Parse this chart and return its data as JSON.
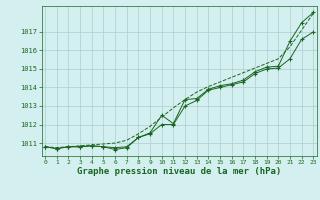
{
  "x": [
    0,
    1,
    2,
    3,
    4,
    5,
    6,
    7,
    8,
    9,
    10,
    11,
    12,
    13,
    14,
    15,
    16,
    17,
    18,
    19,
    20,
    21,
    22,
    23
  ],
  "line_smooth": [
    1010.8,
    1010.75,
    1010.8,
    1010.85,
    1010.9,
    1010.95,
    1011.0,
    1011.15,
    1011.5,
    1011.9,
    1012.4,
    1012.9,
    1013.35,
    1013.75,
    1014.05,
    1014.3,
    1014.55,
    1014.8,
    1015.05,
    1015.3,
    1015.55,
    1016.2,
    1017.1,
    1018.0
  ],
  "line_main": [
    1010.8,
    1010.7,
    1010.8,
    1010.8,
    1010.85,
    1010.8,
    1010.75,
    1010.8,
    1011.3,
    1011.55,
    1012.5,
    1012.05,
    1013.35,
    1013.4,
    1013.9,
    1014.1,
    1014.2,
    1014.4,
    1014.85,
    1015.1,
    1015.15,
    1016.5,
    1017.5,
    1018.05
  ],
  "line_low": [
    1010.8,
    1010.7,
    1010.8,
    1010.8,
    1010.85,
    1010.8,
    1010.65,
    1010.75,
    1011.3,
    1011.5,
    1012.0,
    1012.0,
    1013.0,
    1013.3,
    1013.85,
    1014.0,
    1014.15,
    1014.3,
    1014.75,
    1015.0,
    1015.05,
    1015.55,
    1016.6,
    1017.0
  ],
  "bg_color": "#d4efef",
  "line_color": "#1a6620",
  "grid_color": "#aacece",
  "xlabel_label": "Graphe pression niveau de la mer (hPa)",
  "ylim": [
    1010.3,
    1018.4
  ],
  "xlim": [
    -0.3,
    23.3
  ],
  "yticks": [
    1011,
    1012,
    1013,
    1014,
    1015,
    1016,
    1017
  ],
  "xticks": [
    0,
    1,
    2,
    3,
    4,
    5,
    6,
    7,
    8,
    9,
    10,
    11,
    12,
    13,
    14,
    15,
    16,
    17,
    18,
    19,
    20,
    21,
    22,
    23
  ]
}
